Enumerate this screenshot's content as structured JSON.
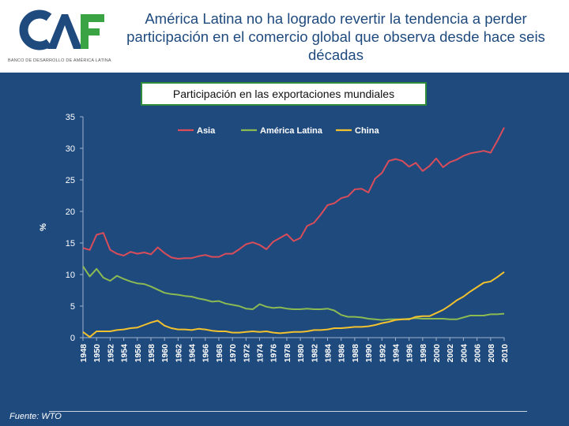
{
  "header": {
    "logo_text": "CAF",
    "logo_subtitle": "BANCO DE DESARROLLO DE AMÉRICA LATINA",
    "title": "América Latina no ha logrado revertir la tendencia a perder participación en el comercio global que observa desde hace seis décadas"
  },
  "chart_subtitle": "Participación en las exportaciones mundiales",
  "source": "Fuente: WTO",
  "colors": {
    "asia": "#d94d5a",
    "latam": "#8cba52",
    "china": "#f2c12e",
    "axis_text": "#ffffff",
    "background": "#1f4a7e"
  },
  "chart_data": {
    "type": "line",
    "title": "Participación en las exportaciones mundiales",
    "xlabel": "",
    "ylabel": "%",
    "ylim": [
      0,
      35
    ],
    "yticks": [
      0,
      5,
      10,
      15,
      20,
      25,
      30,
      35
    ],
    "xlim": [
      1948,
      2010
    ],
    "xticks": [
      1948,
      1950,
      1952,
      1954,
      1956,
      1958,
      1960,
      1962,
      1964,
      1966,
      1968,
      1970,
      1972,
      1974,
      1976,
      1978,
      1980,
      1982,
      1984,
      1986,
      1988,
      1990,
      1992,
      1994,
      1996,
      1998,
      2000,
      2002,
      2004,
      2006,
      2008,
      2010
    ],
    "legend": "top",
    "x": [
      1948,
      1949,
      1950,
      1951,
      1952,
      1953,
      1954,
      1955,
      1956,
      1957,
      1958,
      1959,
      1960,
      1961,
      1962,
      1963,
      1964,
      1965,
      1966,
      1967,
      1968,
      1969,
      1970,
      1971,
      1972,
      1973,
      1974,
      1975,
      1976,
      1977,
      1978,
      1979,
      1980,
      1981,
      1982,
      1983,
      1984,
      1985,
      1986,
      1987,
      1988,
      1989,
      1990,
      1991,
      1992,
      1993,
      1994,
      1995,
      1996,
      1997,
      1998,
      1999,
      2000,
      2001,
      2002,
      2003,
      2004,
      2005,
      2006,
      2007,
      2008,
      2009,
      2010
    ],
    "series": [
      {
        "name": "Asia",
        "values": [
          14.2,
          13.9,
          16.3,
          16.6,
          13.9,
          13.3,
          13.0,
          13.6,
          13.3,
          13.5,
          13.2,
          14.3,
          13.4,
          12.7,
          12.5,
          12.6,
          12.6,
          12.9,
          13.1,
          12.8,
          12.8,
          13.3,
          13.3,
          14.0,
          14.8,
          15.1,
          14.7,
          14.0,
          15.2,
          15.8,
          16.4,
          15.3,
          15.8,
          17.7,
          18.2,
          19.5,
          21.0,
          21.3,
          22.1,
          22.4,
          23.5,
          23.6,
          23.0,
          25.2,
          26.1,
          28.0,
          28.3,
          28.0,
          27.1,
          27.7,
          26.4,
          27.2,
          28.4,
          27.0,
          27.8,
          28.2,
          28.8,
          29.2,
          29.4,
          29.6,
          29.3,
          31.2,
          33.3
        ]
      },
      {
        "name": "América Latina",
        "values": [
          11.3,
          9.7,
          10.9,
          9.5,
          9.0,
          9.8,
          9.3,
          8.9,
          8.6,
          8.5,
          8.1,
          7.6,
          7.1,
          6.9,
          6.8,
          6.6,
          6.5,
          6.2,
          6.0,
          5.7,
          5.8,
          5.4,
          5.2,
          5.0,
          4.6,
          4.5,
          5.3,
          4.9,
          4.7,
          4.8,
          4.6,
          4.5,
          4.5,
          4.6,
          4.5,
          4.5,
          4.6,
          4.3,
          3.6,
          3.3,
          3.3,
          3.2,
          3.0,
          2.9,
          2.8,
          2.9,
          2.9,
          2.9,
          3.0,
          3.1,
          3.0,
          3.0,
          3.0,
          3.0,
          2.9,
          2.9,
          3.2,
          3.5,
          3.5,
          3.5,
          3.7,
          3.7,
          3.8
        ]
      },
      {
        "name": "China",
        "values": [
          0.9,
          0.1,
          1.0,
          1.0,
          1.0,
          1.2,
          1.3,
          1.5,
          1.6,
          2.0,
          2.4,
          2.7,
          1.9,
          1.5,
          1.3,
          1.3,
          1.2,
          1.4,
          1.3,
          1.1,
          1.0,
          1.0,
          0.8,
          0.8,
          0.9,
          1.0,
          0.9,
          1.0,
          0.8,
          0.7,
          0.8,
          0.9,
          0.9,
          1.0,
          1.2,
          1.2,
          1.3,
          1.5,
          1.5,
          1.6,
          1.7,
          1.7,
          1.8,
          2.0,
          2.3,
          2.5,
          2.8,
          2.9,
          2.9,
          3.3,
          3.4,
          3.4,
          3.9,
          4.4,
          5.1,
          5.9,
          6.5,
          7.3,
          8.0,
          8.7,
          8.9,
          9.6,
          10.4
        ]
      }
    ]
  }
}
